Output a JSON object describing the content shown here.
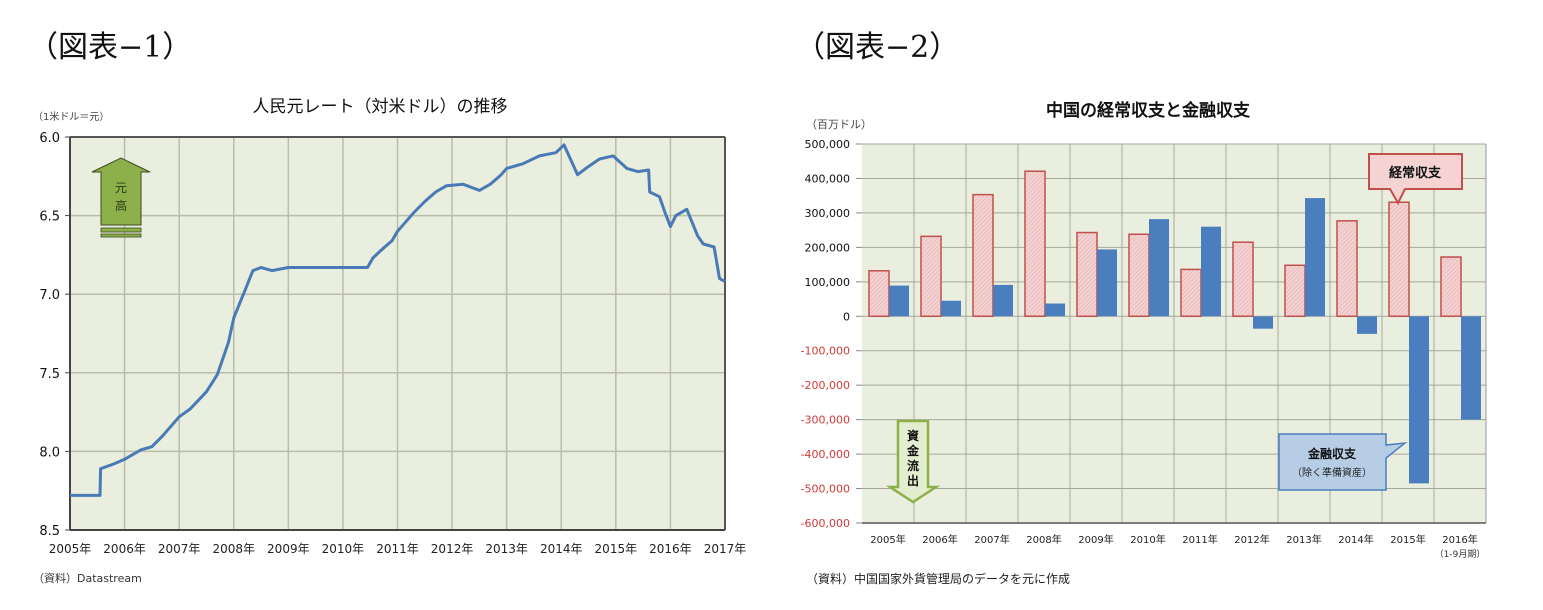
{
  "figures": {
    "left_label": "（図表−1）",
    "right_label": "（図表−2）"
  },
  "chart_data": [
    {
      "type": "line",
      "title": "人民元レート（対米ドル）の推移",
      "ylabel": "（1米ドル＝元）",
      "xlabel": "",
      "ylim": [
        8.5,
        6.0
      ],
      "y_inverted": true,
      "y_ticks": [
        "6.0",
        "6.5",
        "7.0",
        "7.5",
        "8.0",
        "8.5"
      ],
      "x_ticks": [
        "2005年",
        "2006年",
        "2007年",
        "2008年",
        "2009年",
        "2010年",
        "2011年",
        "2012年",
        "2013年",
        "2014年",
        "2015年",
        "2016年",
        "2017年"
      ],
      "grid": true,
      "series": [
        {
          "name": "人民元レート",
          "color": "#4a7ab5",
          "x": [
            2005.0,
            2005.55,
            2005.56,
            2005.8,
            2006.0,
            2006.3,
            2006.5,
            2006.7,
            2006.9,
            2007.0,
            2007.2,
            2007.5,
            2007.7,
            2007.9,
            2008.0,
            2008.2,
            2008.35,
            2008.5,
            2008.7,
            2009.0,
            2009.5,
            2010.0,
            2010.45,
            2010.55,
            2010.7,
            2010.9,
            2011.0,
            2011.3,
            2011.5,
            2011.7,
            2011.9,
            2012.2,
            2012.5,
            2012.7,
            2012.9,
            2013.0,
            2013.3,
            2013.6,
            2013.9,
            2014.05,
            2014.3,
            2014.45,
            2014.7,
            2014.95,
            2015.2,
            2015.4,
            2015.6,
            2015.62,
            2015.8,
            2015.9,
            2016.0,
            2016.1,
            2016.3,
            2016.5,
            2016.6,
            2016.8,
            2016.9,
            2017.0
          ],
          "values": [
            8.28,
            8.28,
            8.11,
            8.08,
            8.05,
            7.99,
            7.97,
            7.9,
            7.82,
            7.78,
            7.73,
            7.62,
            7.51,
            7.31,
            7.15,
            6.98,
            6.85,
            6.83,
            6.85,
            6.83,
            6.83,
            6.83,
            6.83,
            6.77,
            6.72,
            6.66,
            6.6,
            6.48,
            6.41,
            6.35,
            6.31,
            6.3,
            6.34,
            6.3,
            6.24,
            6.2,
            6.17,
            6.12,
            6.1,
            6.05,
            6.24,
            6.2,
            6.14,
            6.12,
            6.2,
            6.22,
            6.21,
            6.35,
            6.38,
            6.48,
            6.57,
            6.5,
            6.46,
            6.63,
            6.68,
            6.7,
            6.9,
            6.92
          ]
        }
      ],
      "annotations": [
        {
          "text": "元高",
          "type": "arrow-up",
          "color": "#8db04a"
        }
      ],
      "source": "（資料）Datastream"
    },
    {
      "type": "bar",
      "title": "中国の経常収支と金融収支",
      "ylabel": "（百万ドル）",
      "xlabel": "",
      "ylim": [
        -600000,
        500000
      ],
      "y_ticks": [
        "500,000",
        "400,000",
        "300,000",
        "200,000",
        "100,000",
        "0",
        "-100,000",
        "-200,000",
        "-300,000",
        "-400,000",
        "-500,000",
        "-600,000"
      ],
      "categories": [
        "2005年",
        "2006年",
        "2007年",
        "2008年",
        "2009年",
        "2010年",
        "2011年",
        "2012年",
        "2013年",
        "2014年",
        "2015年",
        "2016年"
      ],
      "category_sublabels": [
        "",
        "",
        "",
        "",
        "",
        "",
        "",
        "",
        "",
        "",
        "",
        "（1-9月期）"
      ],
      "grid": true,
      "series": [
        {
          "name": "経常収支",
          "color": "#f2c6c6",
          "border": "#c0504d",
          "values": [
            132000,
            232000,
            353000,
            421000,
            243000,
            238000,
            136000,
            215000,
            148000,
            277000,
            331000,
            172000
          ]
        },
        {
          "name": "金融収支（除く準備資産）",
          "color": "#4a7ebf",
          "values": [
            89000,
            45000,
            91000,
            37000,
            194000,
            282000,
            260000,
            -36000,
            343000,
            -51000,
            -485000,
            -300000
          ]
        }
      ],
      "annotations": [
        {
          "text": "経常収支",
          "type": "callout",
          "color": "#c0504d"
        },
        {
          "text": "金融収支",
          "subtext": "（除く準備資産）",
          "type": "callout",
          "color": "#4a7ebf"
        },
        {
          "text": "資金流出",
          "type": "arrow-down",
          "color": "#8db04a"
        }
      ],
      "source": "（資料）中国国家外貨管理局のデータを元に作成"
    }
  ]
}
